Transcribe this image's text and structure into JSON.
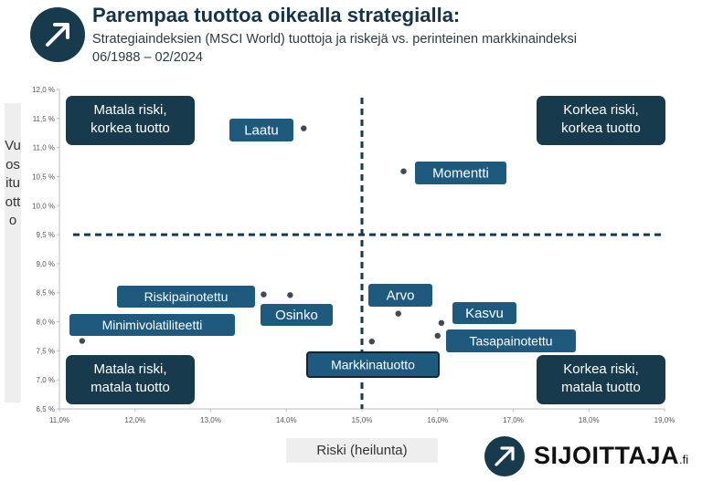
{
  "header": {
    "title": "Parempaa tuottoa oikealla strategialla:",
    "subtitle": "Strategiaindeksien (MSCI World) tuottoja ja riskejä vs. perinteinen markkinaindeksi 06/1988 – 02/2024",
    "logo_icon": "arrow-up-right-icon"
  },
  "brand": {
    "name": "SIJOITTAJA",
    "suffix": ".fi",
    "icon": "arrow-up-right-icon"
  },
  "colors": {
    "dark_navy": "#173a4c",
    "label_teal": "#1d5a7d",
    "point": "#3f4a55"
  },
  "chart_data": {
    "type": "scatter",
    "xlabel": "Riski (heilunta)",
    "ylabel": "Vuosituotto",
    "xlim": [
      11.0,
      19.0
    ],
    "ylim": [
      6.5,
      12.0
    ],
    "xticks": [
      "11,0%",
      "12,0%",
      "13,0%",
      "14,0%",
      "15,0%",
      "16,0%",
      "17,0%",
      "18,0%",
      "19,0%"
    ],
    "yticks": [
      "6,5 %",
      "7,0 %",
      "7,5 %",
      "8,0 %",
      "8,5 %",
      "9,0 %",
      "9,5 %",
      "10,0 %",
      "10,5 %",
      "11,0 %",
      "11,5 %",
      "12,0 %"
    ],
    "divider_x": 15.0,
    "divider_y": 9.5,
    "quadrants": [
      {
        "label": "Matala riski,\nkorkea tuotto",
        "position": "top-left"
      },
      {
        "label": "Korkea riski,\nkorkea tuotto",
        "position": "top-right"
      },
      {
        "label": "Matala riski,\nmatala tuotto",
        "position": "bottom-left"
      },
      {
        "label": "Korkea riski,\nmatala tuotto",
        "position": "bottom-right"
      }
    ],
    "points": [
      {
        "name": "Laatu",
        "x": 14.23,
        "y": 11.33
      },
      {
        "name": "Momentti",
        "x": 15.55,
        "y": 10.59
      },
      {
        "name": "Riskipainotettu",
        "x": 13.7,
        "y": 8.47
      },
      {
        "name": "Osinko",
        "x": 14.05,
        "y": 8.46
      },
      {
        "name": "Minimivolatiliteetti",
        "x": 11.3,
        "y": 7.67
      },
      {
        "name": "Arvo",
        "x": 15.48,
        "y": 8.14
      },
      {
        "name": "Kasvu",
        "x": 16.05,
        "y": 7.98
      },
      {
        "name": "Tasapainotettu",
        "x": 16.0,
        "y": 7.76
      },
      {
        "name": "Markkinatuotto",
        "x": 15.13,
        "y": 7.66
      }
    ]
  }
}
